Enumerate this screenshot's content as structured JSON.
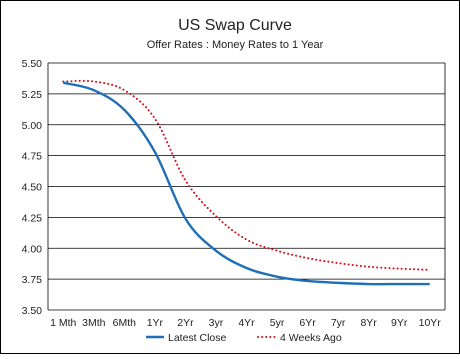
{
  "chart_data": {
    "type": "line",
    "title": "US Swap Curve",
    "subtitle": "Offer Rates : Money Rates to 1 Year",
    "xlabel": "",
    "ylabel": "",
    "categories": [
      "1 Mth",
      "3Mth",
      "6Mth",
      "1Yr",
      "2Yr",
      "3yr",
      "4Yr",
      "5yr",
      "6Yr",
      "7yr",
      "8Yr",
      "9Yr",
      "10Yr"
    ],
    "ylim": [
      3.5,
      5.5
    ],
    "yticks": [
      "3.50",
      "3.75",
      "4.00",
      "4.25",
      "4.50",
      "4.75",
      "5.00",
      "5.25",
      "5.50"
    ],
    "grid": true,
    "legend_position": "bottom",
    "series": [
      {
        "name": "Latest Close",
        "values": [
          5.34,
          5.28,
          5.12,
          4.78,
          4.24,
          3.98,
          3.84,
          3.77,
          3.735,
          3.72,
          3.71,
          3.71,
          3.71
        ],
        "color": "#1f6fb8",
        "style": "solid"
      },
      {
        "name": "4 Weeks Ago",
        "values": [
          5.35,
          5.35,
          5.28,
          5.05,
          4.55,
          4.26,
          4.07,
          3.98,
          3.92,
          3.88,
          3.85,
          3.835,
          3.825
        ],
        "color": "#d0121b",
        "style": "dotted"
      }
    ]
  }
}
